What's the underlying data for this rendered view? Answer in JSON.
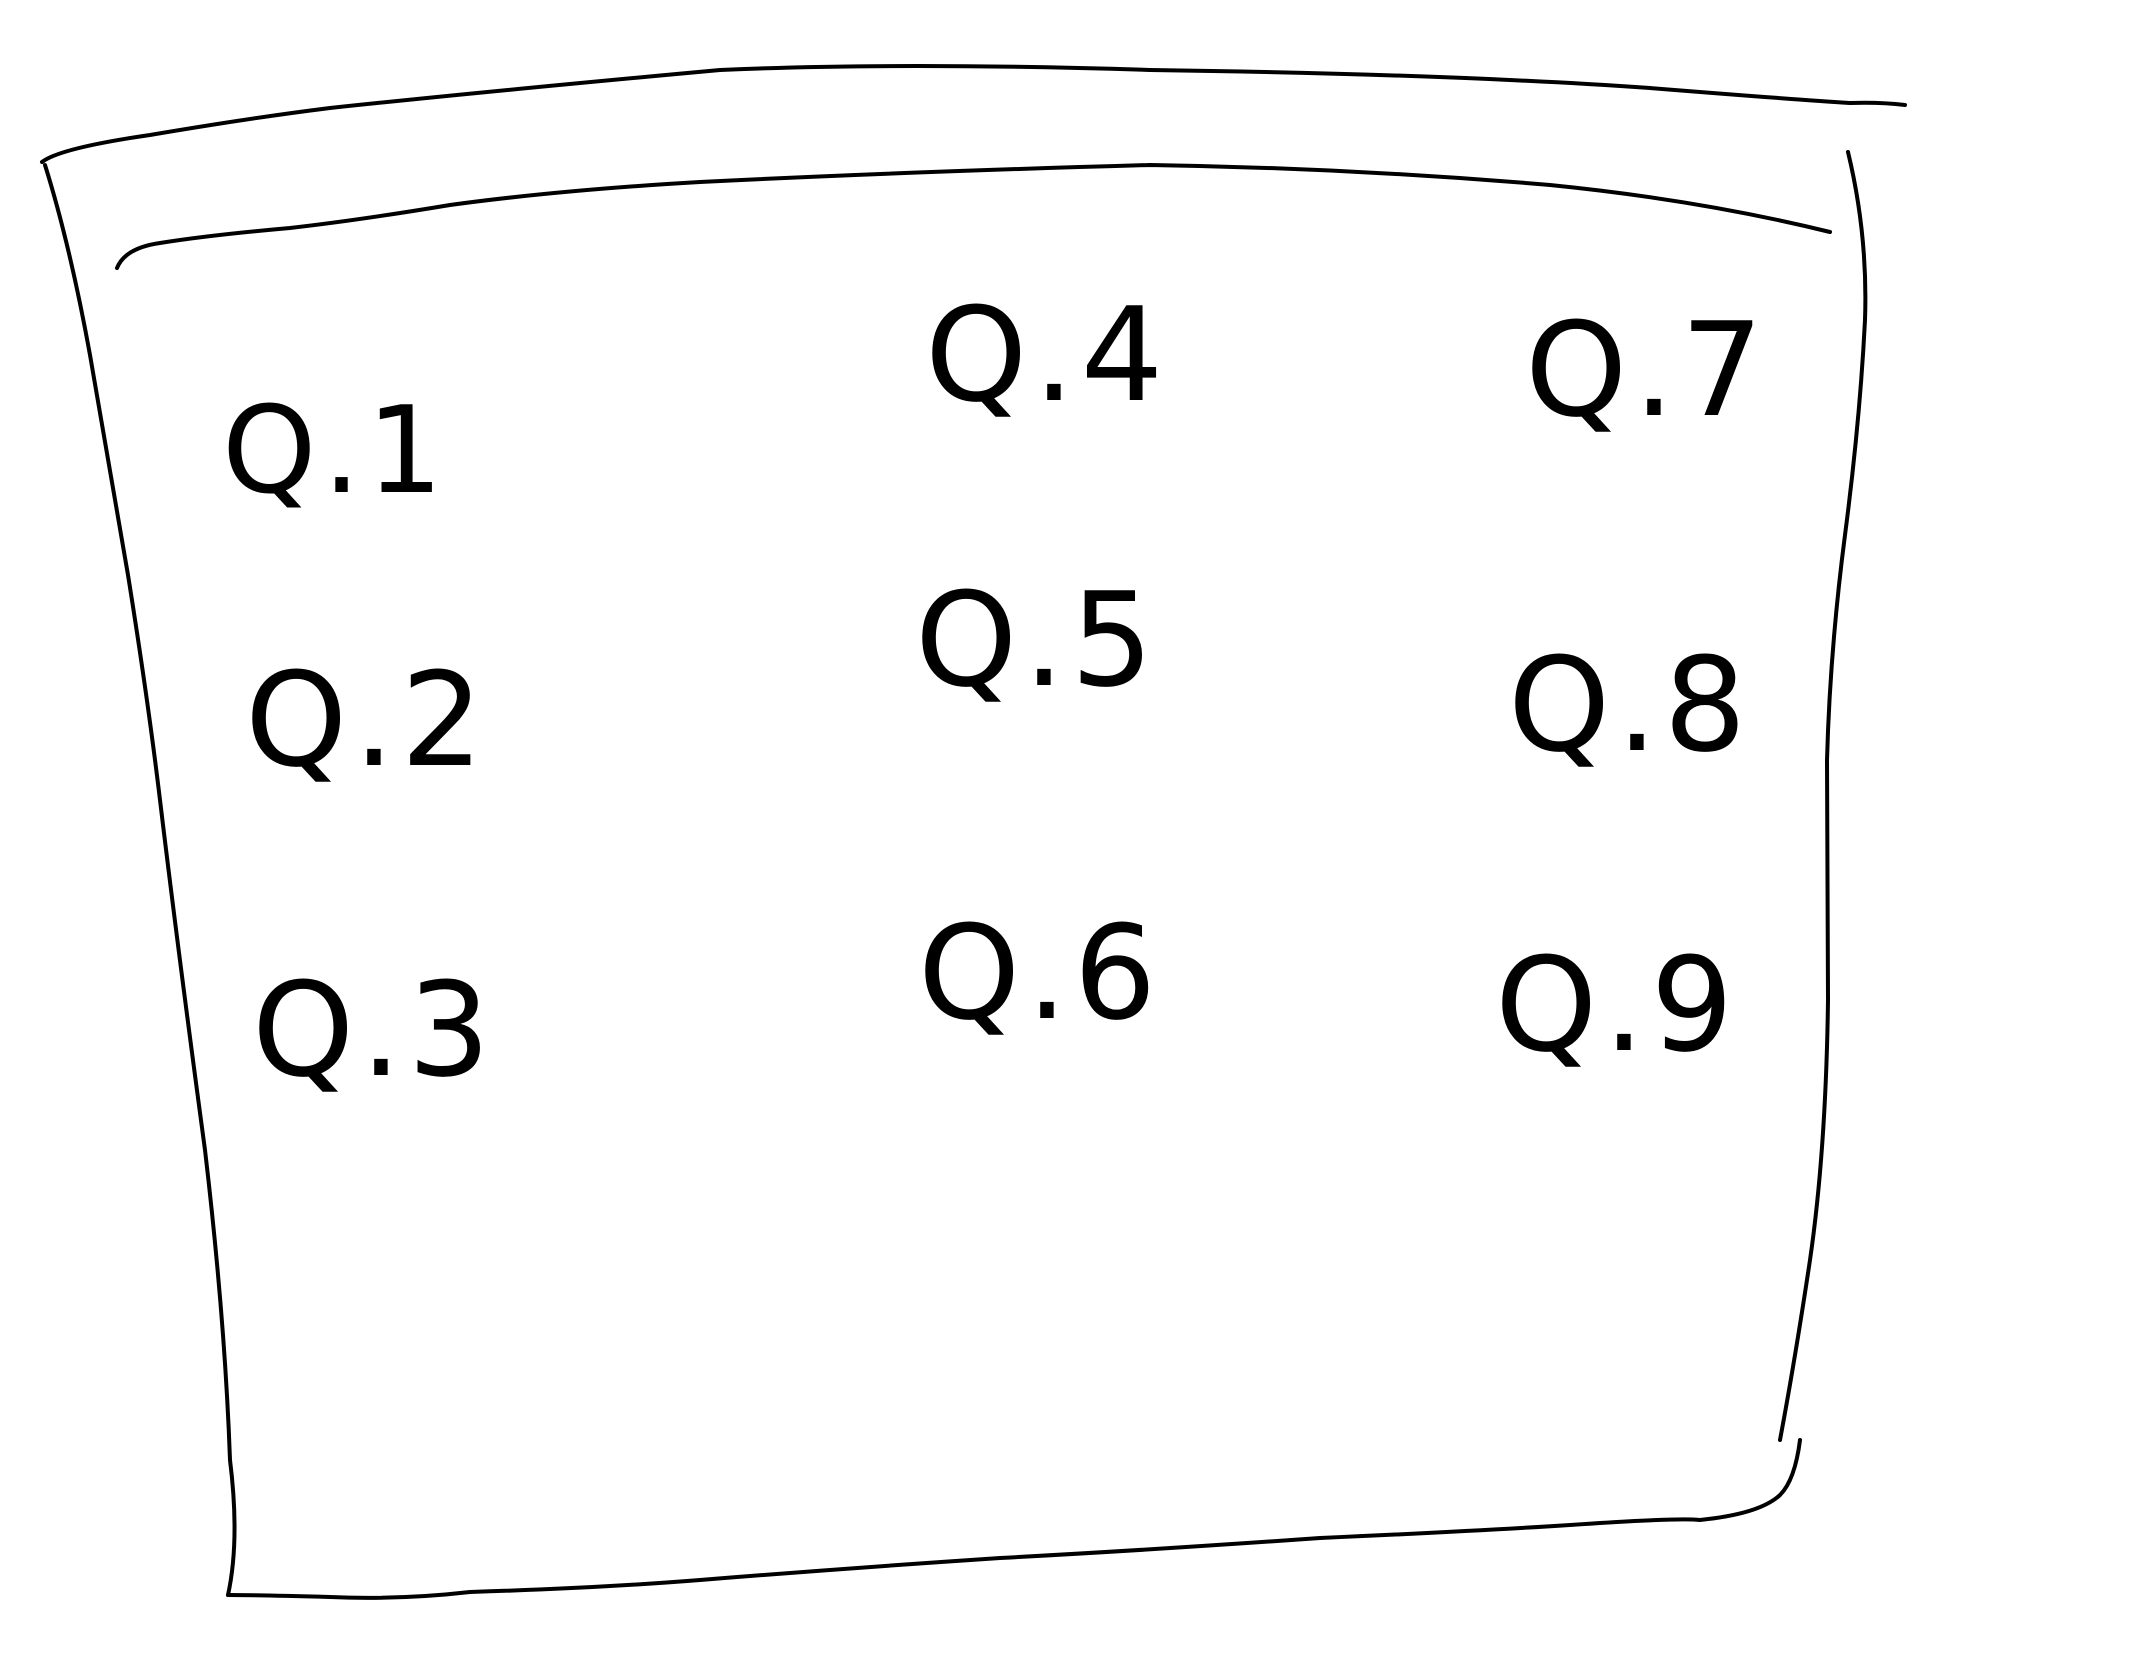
{
  "sketch": {
    "stroke_color": "#000000",
    "background": "#ffffff"
  },
  "questions": [
    {
      "label": "Q.1"
    },
    {
      "label": "Q.2"
    },
    {
      "label": "Q.3"
    },
    {
      "label": "Q.4"
    },
    {
      "label": "Q.5"
    },
    {
      "label": "Q.6"
    },
    {
      "label": "Q.7"
    },
    {
      "label": "Q.8"
    },
    {
      "label": "Q.9"
    }
  ]
}
